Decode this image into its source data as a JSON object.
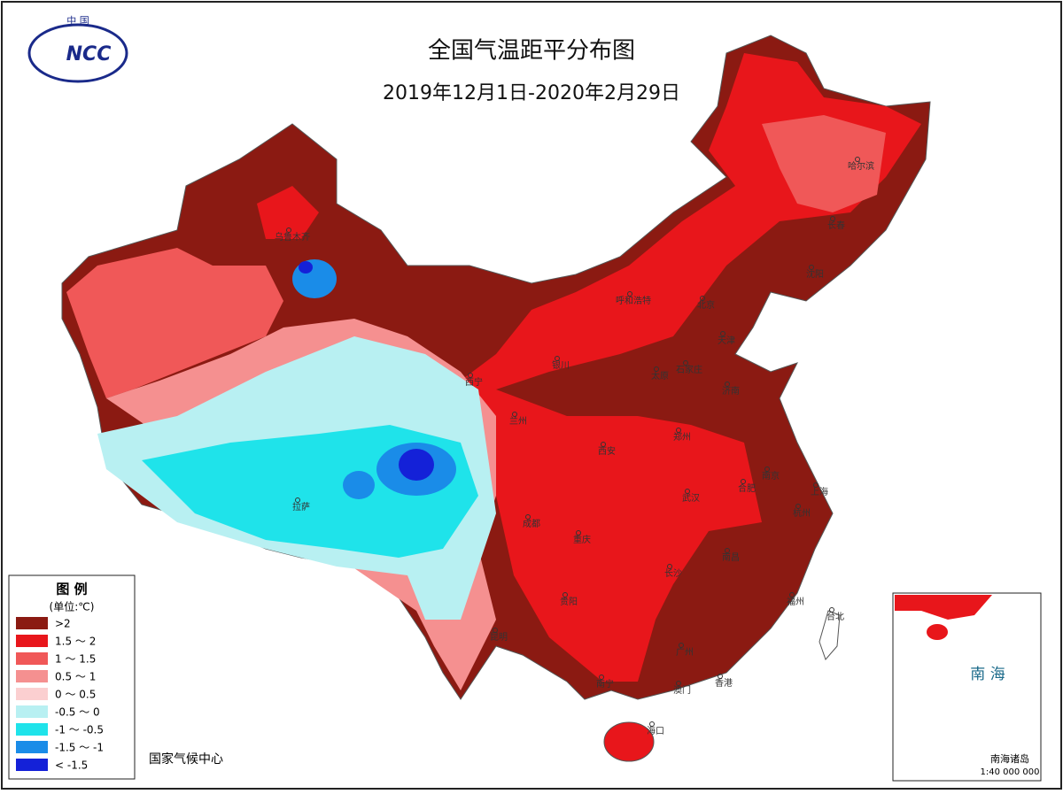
{
  "header": {
    "title": "全国气温距平分布图",
    "subtitle": "2019年12月1日-2020年2月29日"
  },
  "logo": {
    "top": "中 国",
    "main": "NCC"
  },
  "legend": {
    "title": "图 例",
    "unit": "(单位:℃)",
    "items": [
      {
        "label": ">2",
        "color": "#8b1a12"
      },
      {
        "label": "1.5 ～ 2",
        "color": "#e8161b"
      },
      {
        "label": "1 ～ 1.5",
        "color": "#f05858"
      },
      {
        "label": "0.5 ～ 1",
        "color": "#f59090"
      },
      {
        "label": "0 ～ 0.5",
        "color": "#fbcfd0"
      },
      {
        "label": "-0.5 ～ 0",
        "color": "#b8f0f2"
      },
      {
        "label": "-1 ～ -0.5",
        "color": "#1fe3ea"
      },
      {
        "label": "-1.5 ～ -1",
        "color": "#1a8ce8"
      },
      {
        "label": "< -1.5",
        "color": "#1421d8"
      }
    ]
  },
  "map": {
    "cities": [
      "乌鲁木齐",
      "呼和浩特",
      "北京",
      "天津",
      "石家庄",
      "太原",
      "济南",
      "银川",
      "西宁",
      "兰州",
      "郑州",
      "西安",
      "南京",
      "合肥",
      "上海",
      "杭州",
      "武汉",
      "成都",
      "重庆",
      "长沙",
      "南昌",
      "贵阳",
      "福州",
      "台北",
      "昆明",
      "广州",
      "南宁",
      "香港",
      "澳门",
      "海口",
      "拉萨",
      "哈尔滨",
      "长春",
      "沈阳"
    ]
  },
  "inset": {
    "sea": "南 海",
    "islands": "南海诸岛",
    "scale": "1:40 000 000"
  },
  "footer": {
    "source": "国家气候中心"
  }
}
